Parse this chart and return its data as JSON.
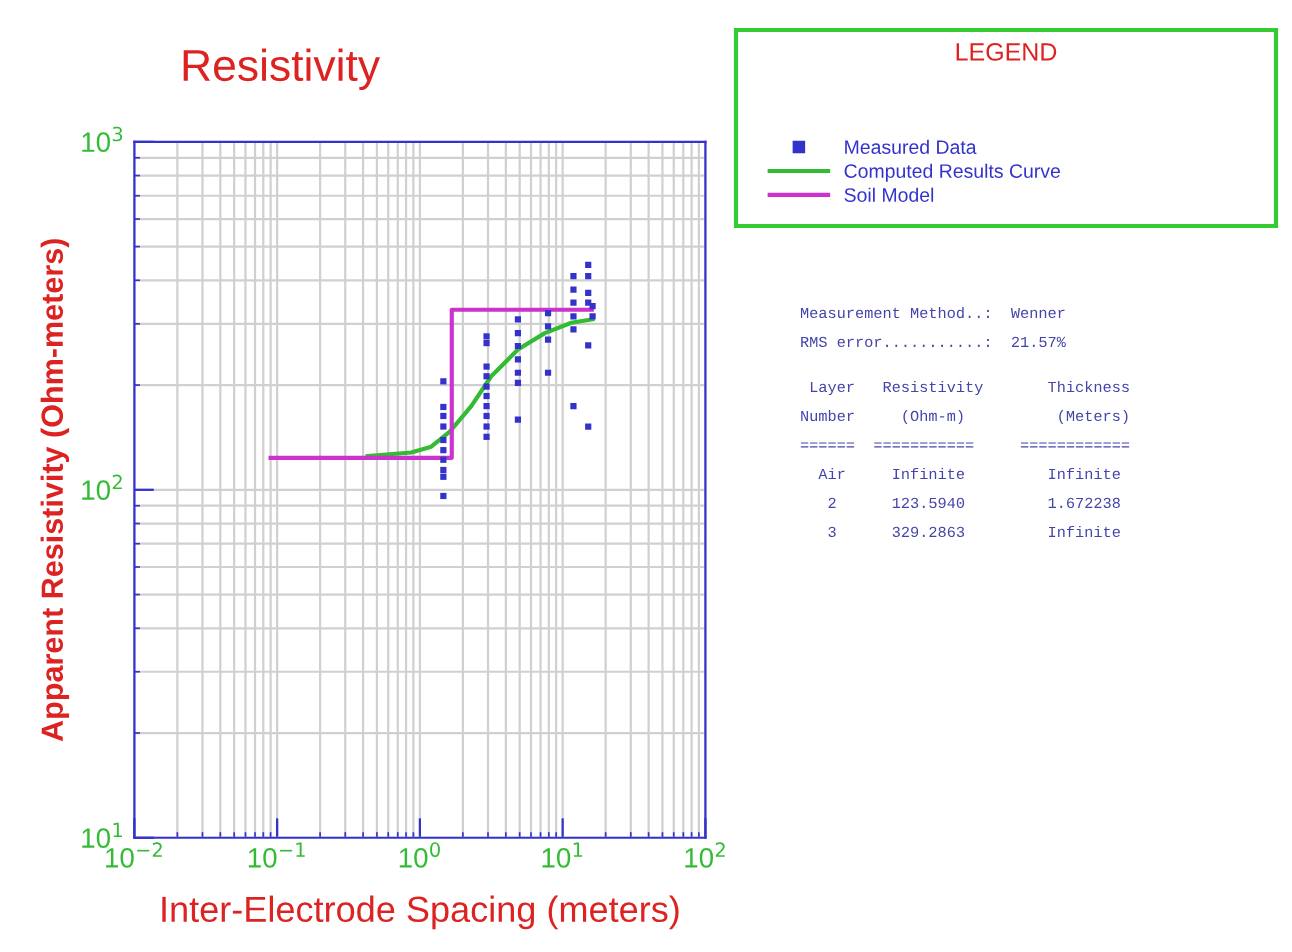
{
  "chart_data": {
    "type": "line",
    "title": "Resistivity",
    "xlabel": "Inter-Electrode Spacing (meters)",
    "ylabel": "Apparent Resistivity (Ohm-meters)",
    "legend_title": "LEGEND",
    "log": "xy",
    "xlim": [
      0.01,
      100
    ],
    "ylim": [
      10,
      1000
    ],
    "xticks": [
      {
        "value": 0.01,
        "label": "10$^{−2}$"
      },
      {
        "value": 0.1,
        "label": "10$^{−1}$"
      },
      {
        "value": 1,
        "label": "10$^{0}$"
      },
      {
        "value": 10,
        "label": "10$^{1}$"
      },
      {
        "value": 100,
        "label": "10$^{2}$"
      }
    ],
    "yticks": [
      {
        "value": 10,
        "label": "10$^{1}$"
      },
      {
        "value": 100,
        "label": "10$^{2}$"
      },
      {
        "value": 1000,
        "label": "10$^{3}$"
      }
    ],
    "grid": true,
    "legend": "top right",
    "line_style": "solid",
    "series": [
      {
        "name": "Measured Data",
        "type": "scatter",
        "marker": "square",
        "color": "#3333cc",
        "x": [
          1.46,
          1.46,
          1.46,
          1.46,
          1.46,
          1.46,
          1.46,
          1.46,
          1.46,
          1.46,
          2.93,
          2.93,
          2.93,
          2.93,
          2.93,
          2.93,
          2.93,
          2.93,
          2.93,
          2.93,
          4.86,
          4.86,
          4.86,
          4.86,
          4.86,
          4.86,
          4.86,
          7.9,
          7.9,
          7.9,
          7.9,
          11.9,
          11.9,
          11.9,
          11.9,
          11.9,
          11.9,
          15.1,
          15.1,
          15.1,
          15.1,
          15.1,
          15.1,
          16.2,
          16.2
        ],
        "values": [
          205,
          173,
          163,
          152,
          139,
          130,
          122,
          114,
          109,
          96,
          276,
          264,
          226,
          212,
          198,
          186,
          174,
          163,
          152,
          142,
          309,
          282,
          259,
          237,
          217,
          203,
          159,
          322,
          295,
          270,
          217,
          411,
          376,
          345,
          315,
          289,
          174,
          443,
          411,
          368,
          345,
          260,
          152,
          337,
          315
        ]
      },
      {
        "name": "Computed Results Curve",
        "marker": "none",
        "color": "#33bb33",
        "x": [
          0.43,
          0.87,
          1.2,
          1.62,
          2.29,
          3.16,
          4.86,
          7.5,
          11.5,
          16.2
        ],
        "values": [
          125,
          128,
          133,
          147,
          174,
          212,
          253,
          282,
          302,
          309
        ]
      },
      {
        "name": "Soil Model",
        "marker": "none",
        "color": "#cc33cc",
        "x": [
          0.09,
          1.672238,
          1.672238,
          16
        ],
        "values": [
          123.594,
          123.594,
          329.2863,
          329.2863
        ]
      }
    ],
    "annotations": [
      "Measurement Method..:  Wenner",
      "RMS error...........:  21.57%",
      " Layer   Resistivity       Thickness",
      "Number     (Ohm-m)          (Meters)",
      "======  ===========     ============",
      "  Air     Infinite         Infinite",
      "   2      123.5940         1.672238",
      "   3      329.2863         Infinite"
    ]
  }
}
